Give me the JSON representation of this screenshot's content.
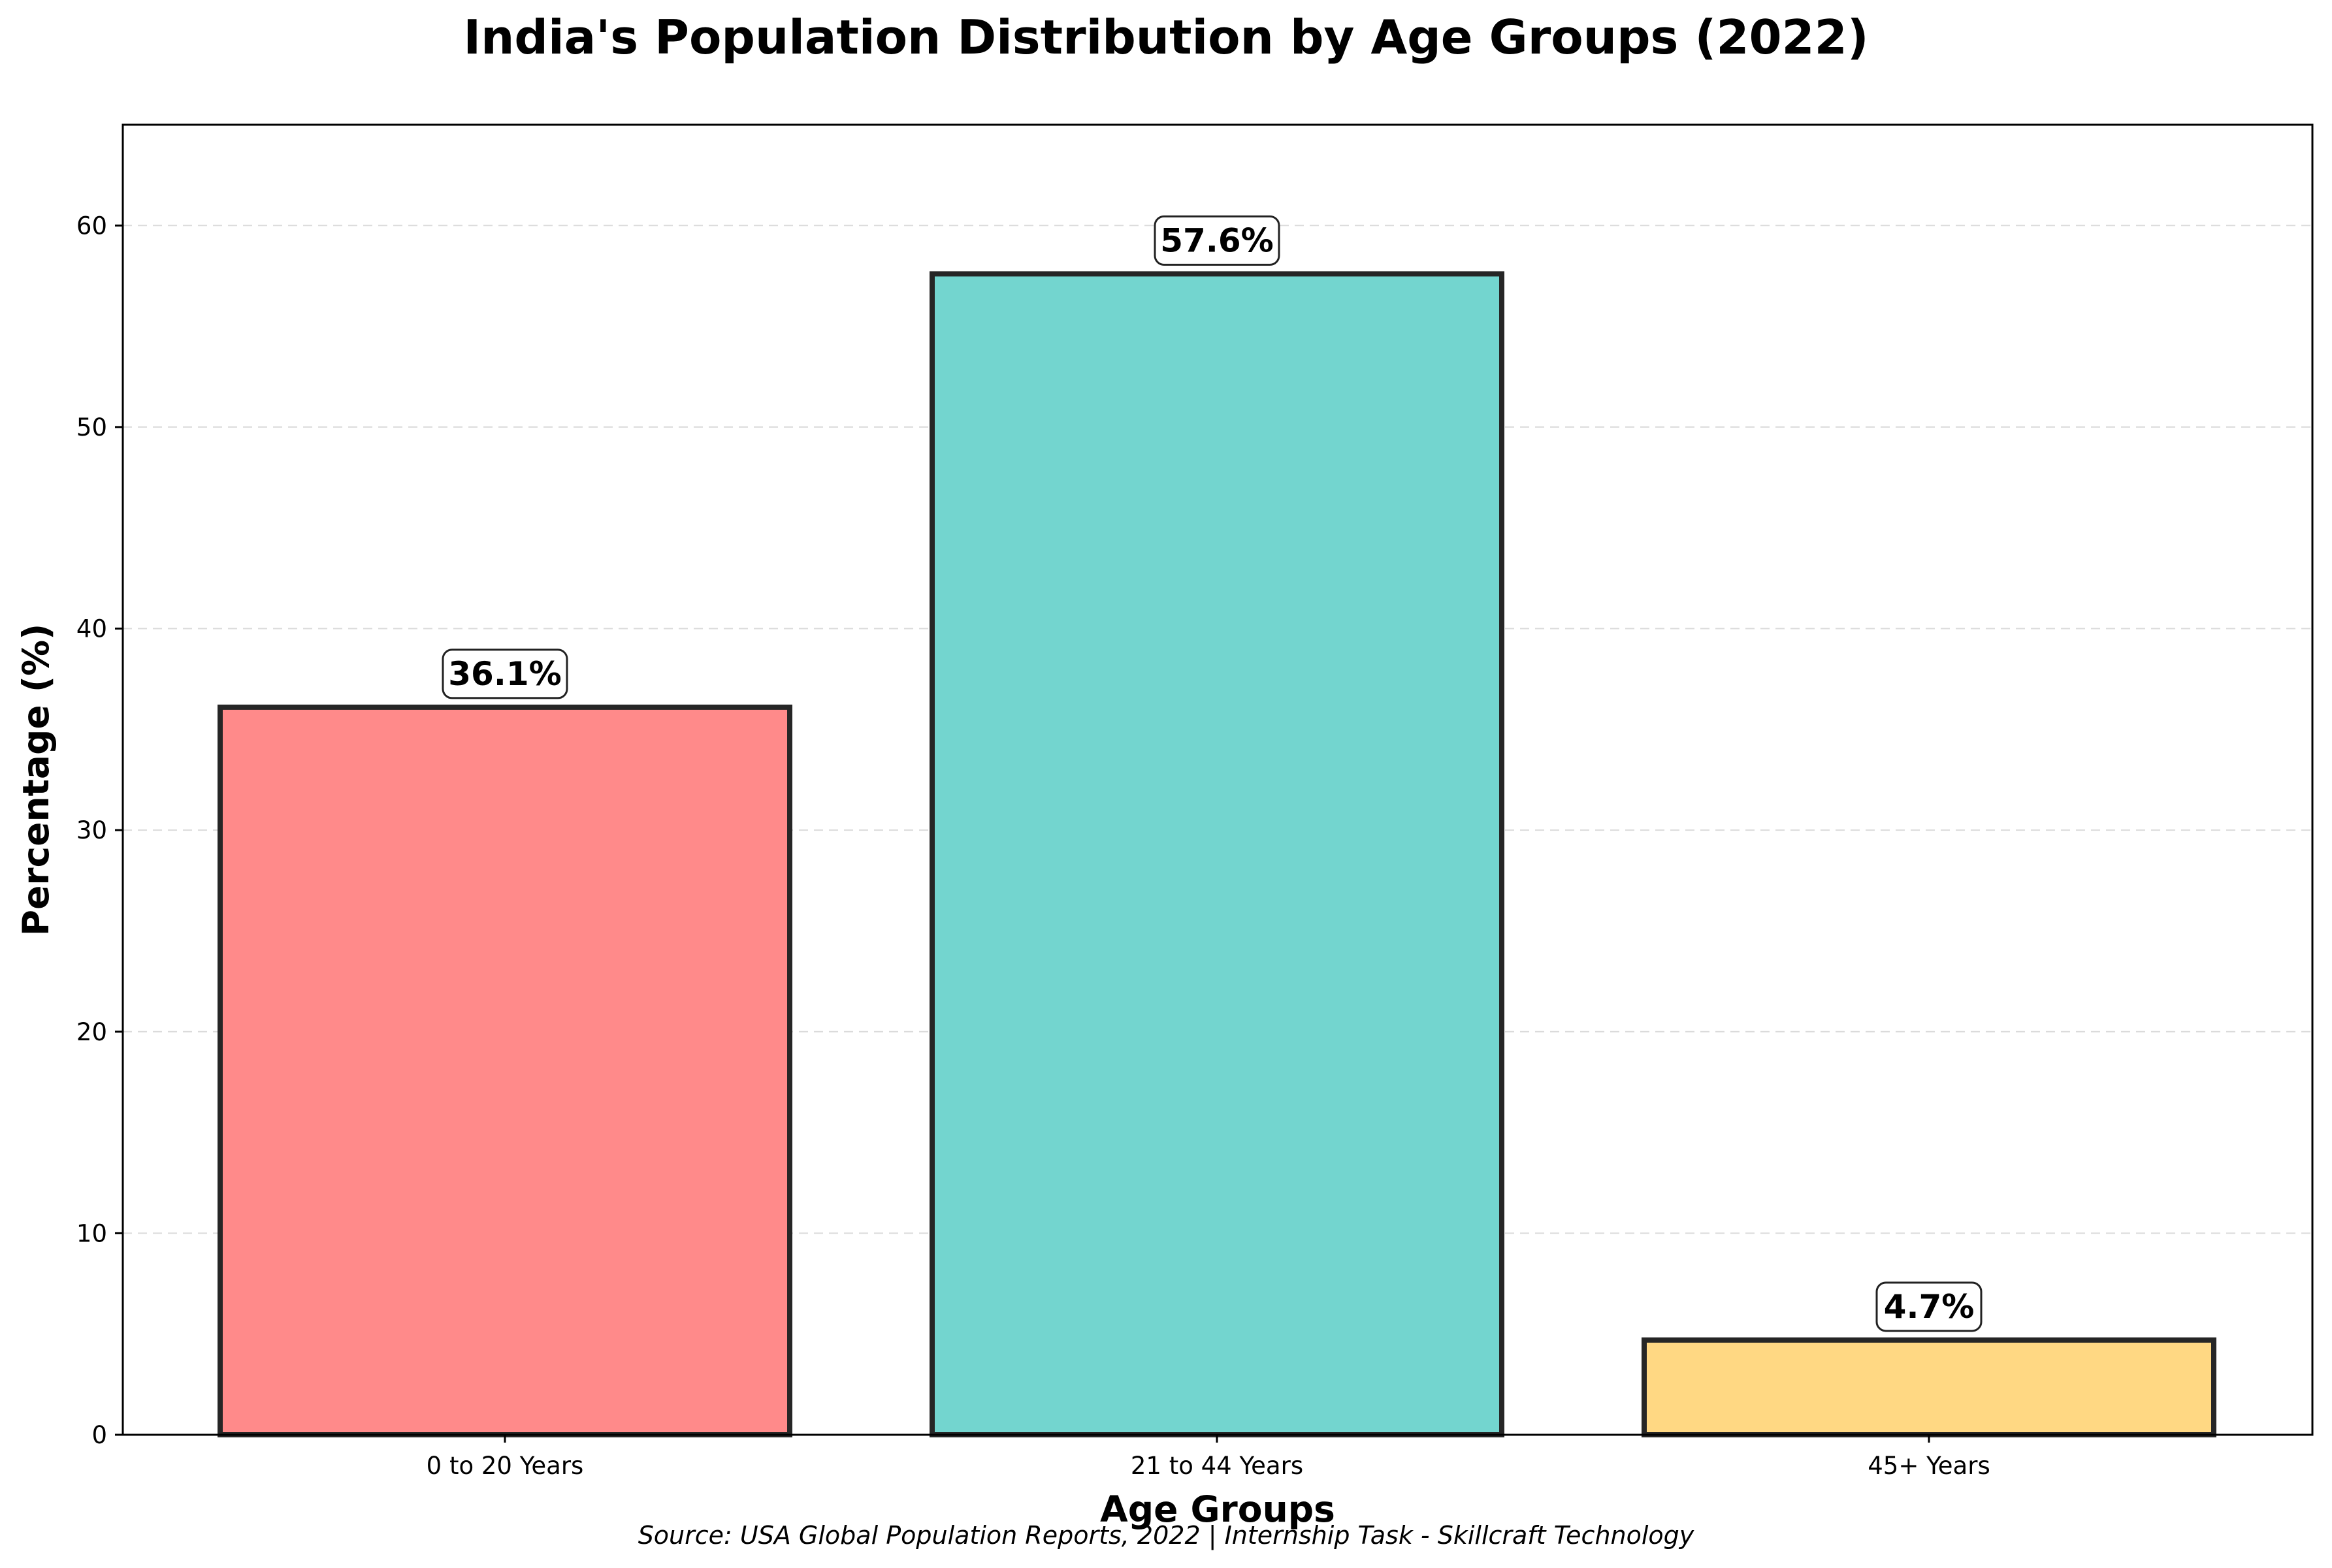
{
  "chart_data": {
    "type": "bar",
    "title": "India's Population Distribution by Age Groups (2022)",
    "xlabel": "Age Groups",
    "ylabel": "Percentage (%)",
    "categories": [
      "0 to 20 Years",
      "21 to 44 Years",
      "45+ Years"
    ],
    "values": [
      36.1,
      57.6,
      4.7
    ],
    "value_labels": [
      "36.1%",
      "57.6%",
      "4.7%"
    ],
    "colors": [
      "#ff8a8a",
      "#73d5cf",
      "#ffd883"
    ],
    "edge_color": "#262626",
    "ylim": [
      0,
      65
    ],
    "yticks": [
      0,
      10,
      20,
      30,
      40,
      50,
      60
    ],
    "grid": "horizontal dashed",
    "source": "Source: USA Global Population Reports, 2022 | Internship Task - Skillcraft Technology"
  }
}
